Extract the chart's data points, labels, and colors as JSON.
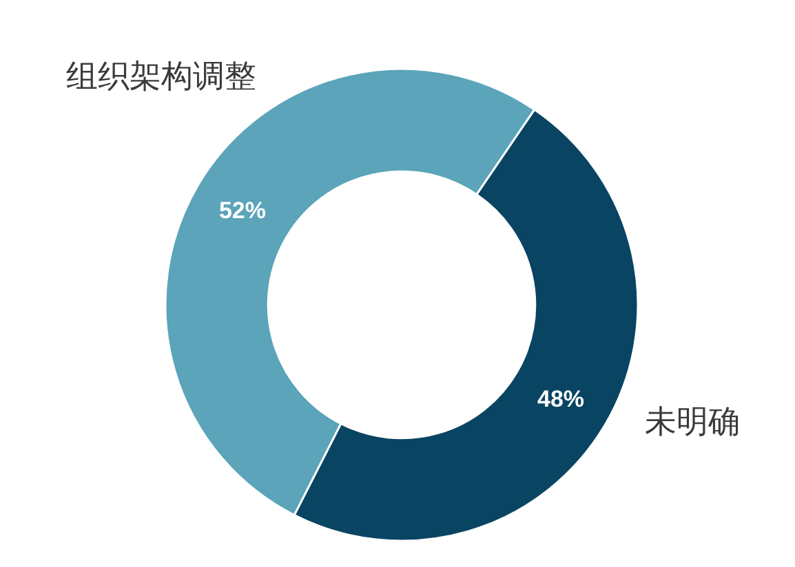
{
  "chart_data": {
    "type": "donut",
    "categories": [
      "组织架构调整",
      "未明确"
    ],
    "values": [
      52,
      48
    ],
    "colors": [
      "#5ba4ba",
      "#0a4463"
    ],
    "value_labels": [
      "52%",
      "48%"
    ]
  }
}
